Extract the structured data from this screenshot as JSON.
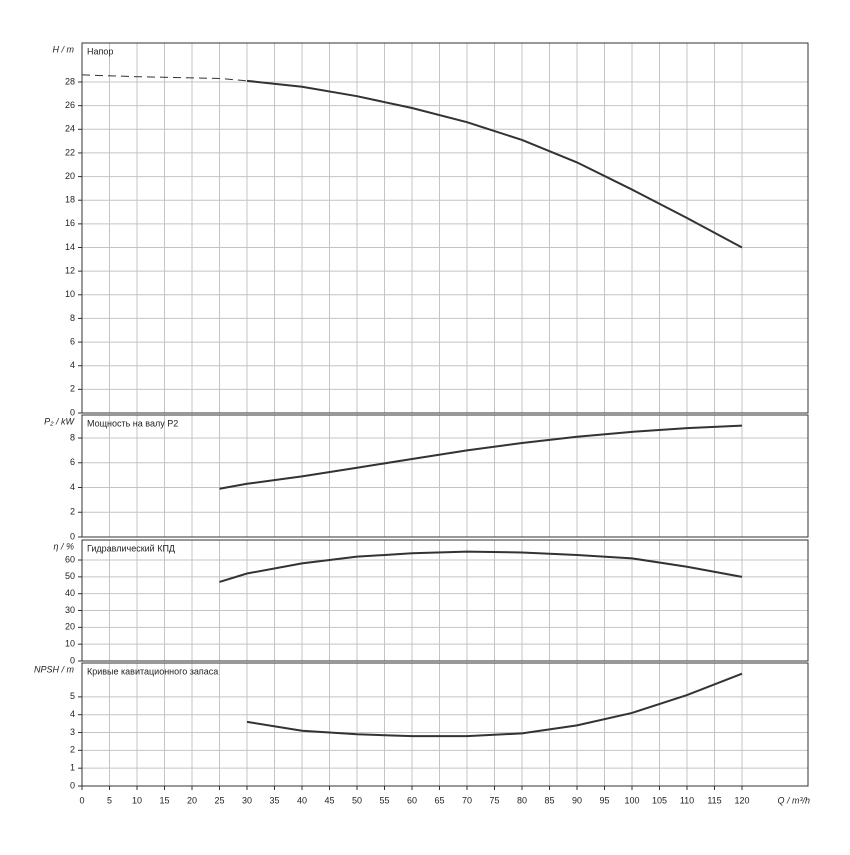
{
  "chart_data": [
    {
      "type": "line",
      "title": "Напор",
      "ylabel": "H / m",
      "x": [
        0,
        10,
        20,
        25,
        30,
        40,
        50,
        60,
        70,
        80,
        90,
        100,
        110,
        120
      ],
      "xlim": [
        0,
        132
      ],
      "ylim": [
        0,
        31.3
      ],
      "yticks": [
        0,
        2,
        4,
        6,
        8,
        10,
        12,
        14,
        16,
        18,
        20,
        22,
        24,
        26,
        28
      ],
      "grid": true,
      "series": [
        {
          "color": "#333333",
          "dashed": true,
          "values": [
            28.6,
            28.45,
            28.35,
            28.3,
            28.1,
            null,
            null,
            null,
            null,
            null,
            null,
            null,
            null,
            null
          ]
        },
        {
          "color": "#333333",
          "dashed": false,
          "values": [
            null,
            null,
            null,
            null,
            28.1,
            27.6,
            26.8,
            25.8,
            24.6,
            23.1,
            21.2,
            18.9,
            16.5,
            14.0
          ]
        }
      ]
    },
    {
      "type": "line",
      "title": "Мощность на валу P2",
      "ylabel": "P₂ / kW",
      "x": [
        25,
        30,
        40,
        50,
        60,
        70,
        80,
        90,
        100,
        110,
        120
      ],
      "xlim": [
        0,
        132
      ],
      "ylim": [
        0,
        9.86
      ],
      "yticks": [
        0,
        2,
        4,
        6,
        8
      ],
      "grid": true,
      "series": [
        {
          "color": "#333333",
          "dashed": false,
          "values": [
            3.9,
            4.3,
            4.9,
            5.6,
            6.3,
            7.0,
            7.6,
            8.1,
            8.5,
            8.8,
            9.0
          ]
        }
      ]
    },
    {
      "type": "line",
      "title": "Гидравлический КПД",
      "ylabel": "η / %",
      "x": [
        25,
        30,
        40,
        50,
        60,
        70,
        80,
        90,
        100,
        110,
        120
      ],
      "xlim": [
        0,
        132
      ],
      "ylim": [
        0,
        71.9
      ],
      "yticks": [
        0,
        10,
        20,
        30,
        40,
        50,
        60
      ],
      "grid": true,
      "series": [
        {
          "color": "#333333",
          "dashed": false,
          "values": [
            47,
            52,
            58,
            62,
            64,
            65,
            64.5,
            63,
            61,
            56,
            50
          ]
        }
      ]
    },
    {
      "type": "line",
      "title": "Кривые кавитационного запаса",
      "ylabel": "NPSH / m",
      "xlabel": "Q / m³/h",
      "x": [
        30,
        40,
        50,
        60,
        70,
        80,
        90,
        100,
        110,
        120
      ],
      "xlim": [
        0,
        132
      ],
      "ylim": [
        0,
        6.9
      ],
      "yticks": [
        0,
        1,
        2,
        3,
        4,
        5
      ],
      "grid": true,
      "xticks": [
        0,
        5,
        10,
        15,
        20,
        25,
        30,
        35,
        40,
        45,
        50,
        55,
        60,
        65,
        70,
        75,
        80,
        85,
        90,
        95,
        100,
        105,
        110,
        115,
        120
      ],
      "series": [
        {
          "color": "#333333",
          "dashed": false,
          "values": [
            3.6,
            3.1,
            2.9,
            2.8,
            2.8,
            2.95,
            3.4,
            4.1,
            5.1,
            6.3
          ]
        }
      ]
    }
  ]
}
